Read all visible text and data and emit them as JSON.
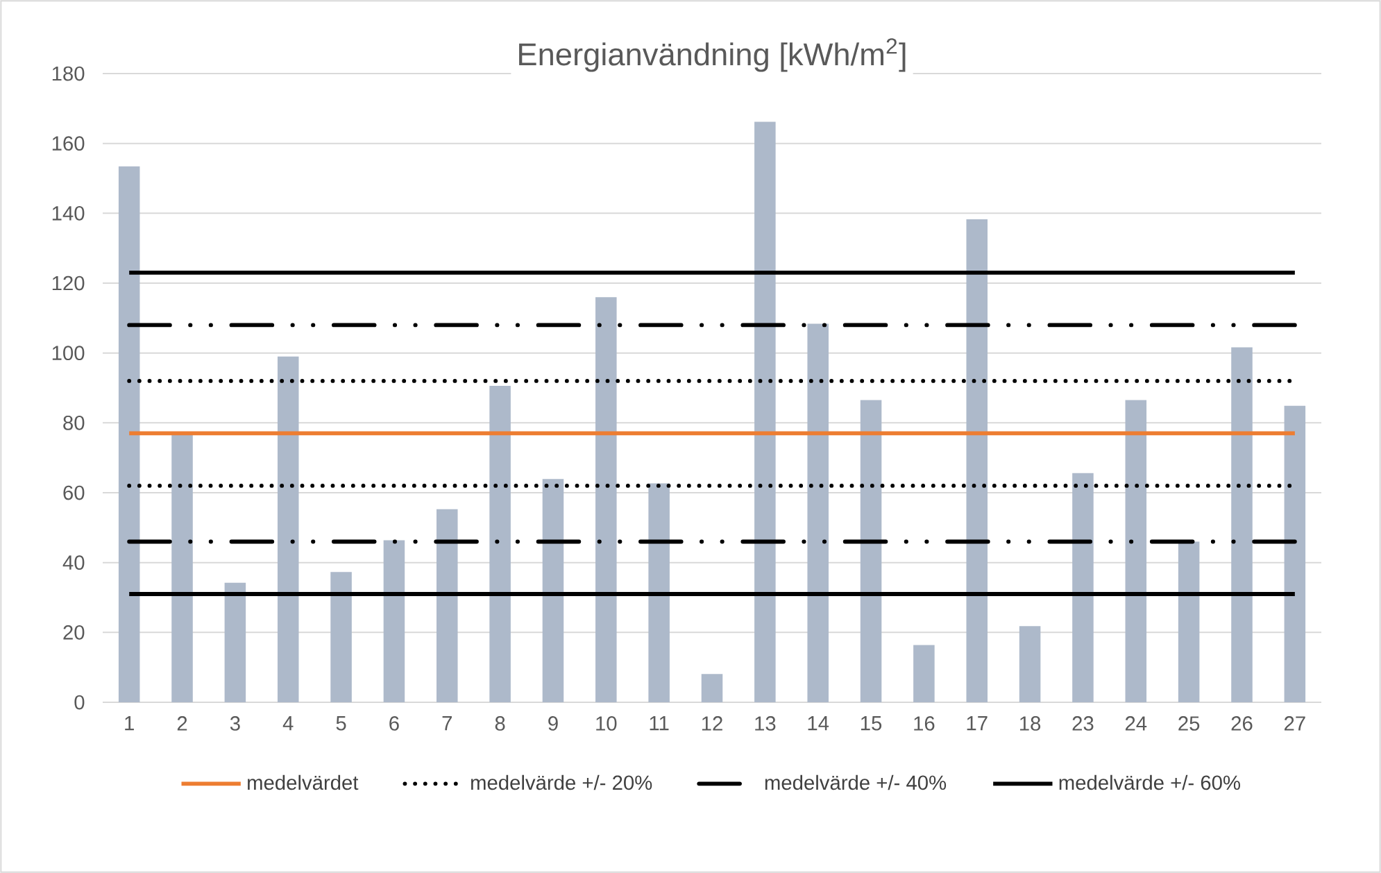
{
  "chart_data": {
    "type": "bar",
    "title": "Energianvändning [kWh/m$^{2}$]",
    "categories": [
      "1",
      "2",
      "3",
      "4",
      "5",
      "6",
      "7",
      "8",
      "9",
      "10",
      "11",
      "12",
      "13",
      "14",
      "15",
      "16",
      "17",
      "18",
      "23",
      "24",
      "25",
      "26",
      "27"
    ],
    "series": [
      {
        "color": "#adb9ca",
        "values": [
          153.4,
          76.8,
          34.2,
          99,
          37.3,
          46.4,
          55.3,
          90.6,
          63.9,
          116,
          62.7,
          8.1,
          166.2,
          108.4,
          86.5,
          16.4,
          138.3,
          21.8,
          65.6,
          86.5,
          46,
          101.6,
          84.9
        ]
      },
      {
        "type": "line",
        "name": "medelvärdet",
        "color": "#ed7d31",
        "line_style": "solid",
        "values": [
          77,
          77,
          77,
          77,
          77,
          77,
          77,
          77,
          77,
          77,
          77,
          77,
          77,
          77,
          77,
          77,
          77,
          77,
          77,
          77,
          77,
          77,
          77
        ]
      },
      {
        "type": "line",
        "name": "medelvärde +/- 20%",
        "color": "#000000",
        "line_style": "dotted",
        "values": [
          92,
          92,
          92,
          92,
          92,
          92,
          92,
          92,
          92,
          92,
          92,
          92,
          92,
          92,
          92,
          92,
          92,
          92,
          92,
          92,
          92,
          92,
          92
        ]
      },
      {
        "type": "line",
        "color": "#000000",
        "line_style": "dotted",
        "values": [
          62,
          62,
          62,
          62,
          62,
          62,
          62,
          62,
          62,
          62,
          62,
          62,
          62,
          62,
          62,
          62,
          62,
          62,
          62,
          62,
          62,
          62,
          62
        ]
      },
      {
        "type": "line",
        "name": "medelvärde +/- 40%",
        "color": "#000000",
        "line_style": "dashed",
        "values": [
          108,
          108,
          108,
          108,
          108,
          108,
          108,
          108,
          108,
          108,
          108,
          108,
          108,
          108,
          108,
          108,
          108,
          108,
          108,
          108,
          108,
          108,
          108
        ]
      },
      {
        "type": "line",
        "color": "#000000",
        "line_style": "dashed",
        "values": [
          46,
          46,
          46,
          46,
          46,
          46,
          46,
          46,
          46,
          46,
          46,
          46,
          46,
          46,
          46,
          46,
          46,
          46,
          46,
          46,
          46,
          46,
          46
        ]
      },
      {
        "type": "line",
        "name": "medelvärde +/- 60%",
        "color": "#000000",
        "line_style": "solid",
        "values": [
          123,
          123,
          123,
          123,
          123,
          123,
          123,
          123,
          123,
          123,
          123,
          123,
          123,
          123,
          123,
          123,
          123,
          123,
          123,
          123,
          123,
          123,
          123
        ]
      },
      {
        "type": "line",
        "color": "#000000",
        "line_style": "solid",
        "values": [
          31,
          31,
          31,
          31,
          31,
          31,
          31,
          31,
          31,
          31,
          31,
          31,
          31,
          31,
          31,
          31,
          31,
          31,
          31,
          31,
          31,
          31,
          31
        ]
      }
    ],
    "ylim": [
      0,
      180
    ],
    "yticks": [
      0,
      20,
      40,
      60,
      80,
      100,
      120,
      140,
      160,
      180
    ],
    "grid": "y",
    "legend": "bottom"
  }
}
